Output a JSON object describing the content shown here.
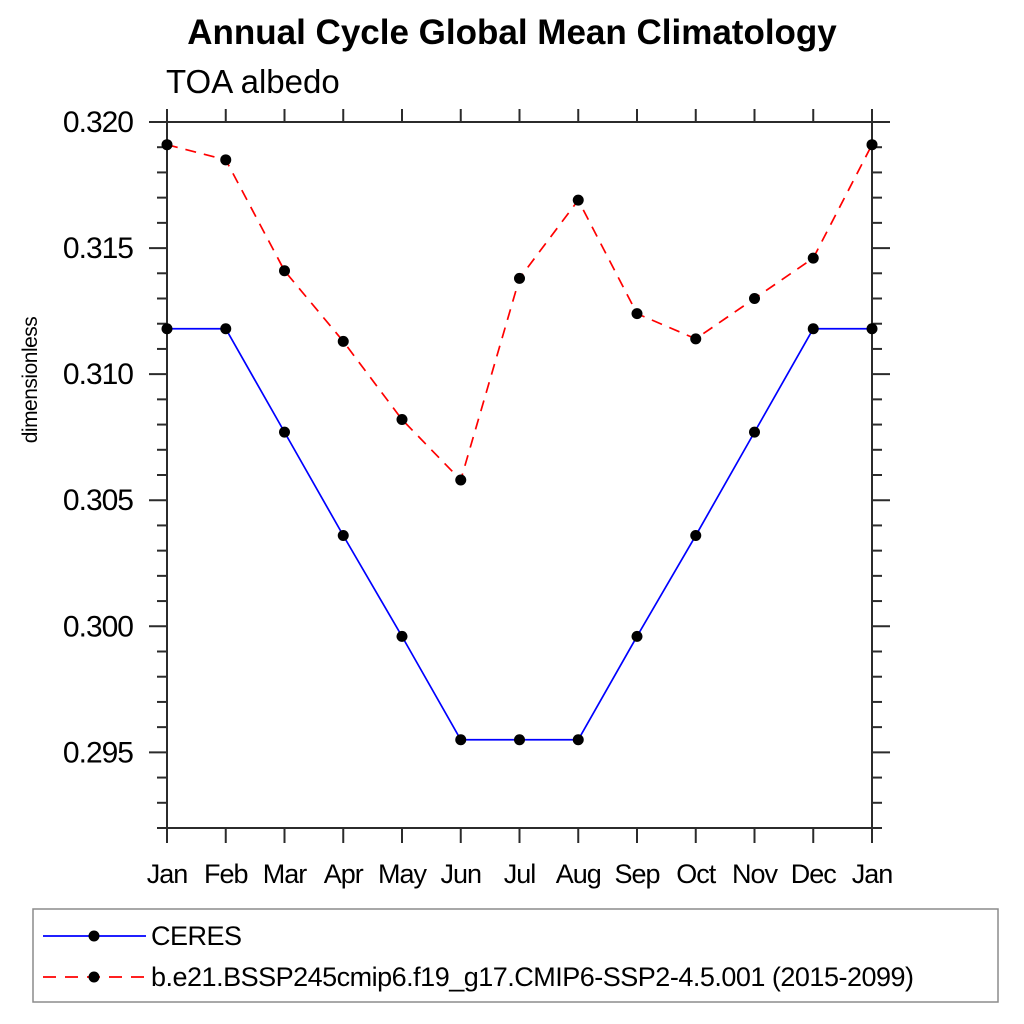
{
  "chart_data": {
    "type": "line",
    "title": "Annual Cycle Global Mean Climatology",
    "subtitle": "TOA albedo",
    "ylabel": "dimensionless",
    "xlabel": "",
    "categories": [
      "Jan",
      "Feb",
      "Mar",
      "Apr",
      "May",
      "Jun",
      "Jul",
      "Aug",
      "Sep",
      "Oct",
      "Nov",
      "Dec",
      "Jan"
    ],
    "ylim": [
      0.292,
      0.32
    ],
    "ytick_major": [
      0.295,
      0.3,
      0.305,
      0.31,
      0.315,
      0.32
    ],
    "ytick_labels": [
      "0.295",
      "0.300",
      "0.305",
      "0.310",
      "0.315",
      "0.320"
    ],
    "ytick_minor_step": 0.001,
    "grid": false,
    "legend_position": "bottom-left",
    "series": [
      {
        "name": "CERES",
        "line_color": "#0000ff",
        "line_style": "solid",
        "marker": "filled-circle",
        "marker_color": "#000000",
        "values": [
          0.3118,
          0.3118,
          0.3077,
          0.3036,
          0.2996,
          0.2955,
          0.2955,
          0.2955,
          0.2996,
          0.3036,
          0.3077,
          0.3118,
          0.3118
        ]
      },
      {
        "name": "b.e21.BSSP245cmip6.f19_g17.CMIP6-SSP2-4.5.001 (2015-2099)",
        "line_color": "#ff0000",
        "line_style": "dashed",
        "marker": "filled-circle",
        "marker_color": "#000000",
        "values": [
          0.3191,
          0.3185,
          0.3141,
          0.3113,
          0.3082,
          0.3058,
          0.3138,
          0.3169,
          0.3124,
          0.3114,
          0.313,
          0.3146,
          0.3191
        ]
      }
    ]
  },
  "colors": {
    "background": "#ffffff",
    "frame": "#2b2b2b",
    "text": "#000000",
    "legend_border": "#8c8c8c"
  }
}
